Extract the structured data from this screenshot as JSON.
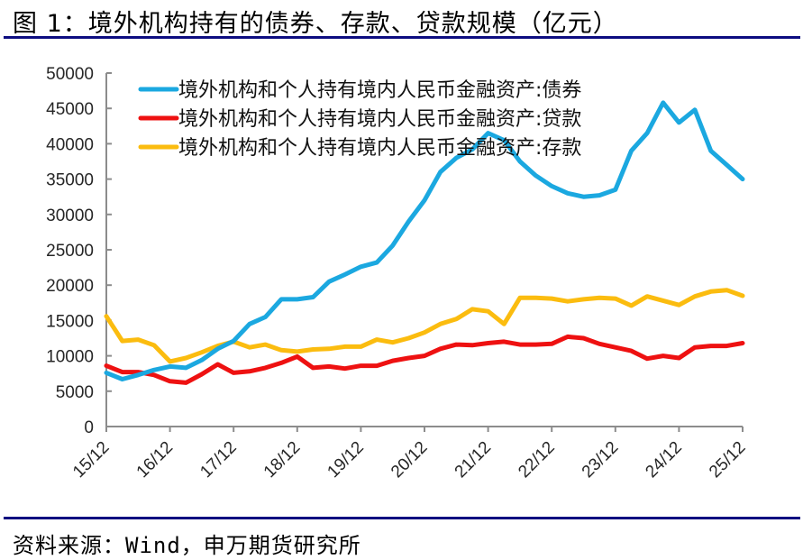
{
  "header": {
    "title": "图 1：境外机构持有的债券、存款、贷款规模（亿元）"
  },
  "footer": {
    "source": "资料来源：Wind，申万期货研究所"
  },
  "colors": {
    "rule": "#0d0d80",
    "bonds": "#1ba8e0",
    "loans": "#ee1111",
    "deposits": "#fbbc0f",
    "axis": "#8c8c8c"
  },
  "chart_data": {
    "type": "line",
    "title": "图 1：境外机构持有的债券、存款、贷款规模（亿元）",
    "xlabel": "",
    "ylabel": "亿元",
    "ylim": [
      0,
      50000
    ],
    "yticks": [
      0,
      5000,
      10000,
      15000,
      20000,
      25000,
      30000,
      35000,
      40000,
      45000,
      50000
    ],
    "xtick_labels": [
      "15/12",
      "16/12",
      "17/12",
      "18/12",
      "19/12",
      "20/12",
      "21/12",
      "22/12",
      "23/12",
      "24/12",
      "25/12"
    ],
    "grid": false,
    "legend_position": "top-inside",
    "x": [
      "15/12",
      "16/03",
      "16/06",
      "16/09",
      "16/12",
      "17/03",
      "17/06",
      "17/09",
      "17/12",
      "18/03",
      "18/06",
      "18/09",
      "18/12",
      "19/03",
      "19/06",
      "19/09",
      "19/12",
      "20/03",
      "20/06",
      "20/09",
      "20/12",
      "21/03",
      "21/06",
      "21/09",
      "21/12",
      "22/03",
      "22/06",
      "22/09",
      "22/12",
      "23/03",
      "23/06",
      "23/09",
      "23/12",
      "24/03",
      "24/06",
      "24/09",
      "24/12",
      "25/03",
      "25/06",
      "25/09",
      "25/12"
    ],
    "series": [
      {
        "name": "境外机构和个人持有境内人民币金融资产:债券",
        "color": "#1ba8e0",
        "values": [
          7600,
          6700,
          7300,
          8000,
          8500,
          8300,
          9400,
          11000,
          12100,
          14500,
          15500,
          18000,
          18000,
          18300,
          20500,
          21500,
          22600,
          23200,
          25600,
          29000,
          32000,
          36000,
          38000,
          39200,
          41500,
          40500,
          37500,
          35500,
          34000,
          33000,
          32500,
          32700,
          33500,
          39000,
          41500,
          45800,
          43000,
          44800,
          39000,
          37000,
          35000
        ]
      },
      {
        "name": "境外机构和个人持有境内人民币金融资产:贷款",
        "color": "#ee1111",
        "values": [
          8600,
          7700,
          7700,
          7300,
          6400,
          6200,
          7400,
          8800,
          7600,
          7800,
          8300,
          9000,
          9900,
          8300,
          8500,
          8200,
          8600,
          8600,
          9300,
          9700,
          10000,
          11000,
          11600,
          11500,
          11800,
          12000,
          11600,
          11600,
          11700,
          12700,
          12500,
          11700,
          11200,
          10700,
          9600,
          10000,
          9700,
          11200,
          11400,
          11400,
          11800
        ]
      },
      {
        "name": "境外机构和个人持有境内人民币金融资产:存款",
        "color": "#fbbc0f",
        "values": [
          15600,
          12100,
          12300,
          11500,
          9200,
          9700,
          10500,
          11400,
          12000,
          11200,
          11600,
          10800,
          10600,
          10900,
          11000,
          11300,
          11300,
          12300,
          11900,
          12500,
          13300,
          14500,
          15200,
          16600,
          16300,
          14500,
          18200,
          18200,
          18100,
          17700,
          18000,
          18200,
          18100,
          17100,
          18400,
          17800,
          17200,
          18400,
          19100,
          19300,
          18500
        ]
      }
    ]
  }
}
